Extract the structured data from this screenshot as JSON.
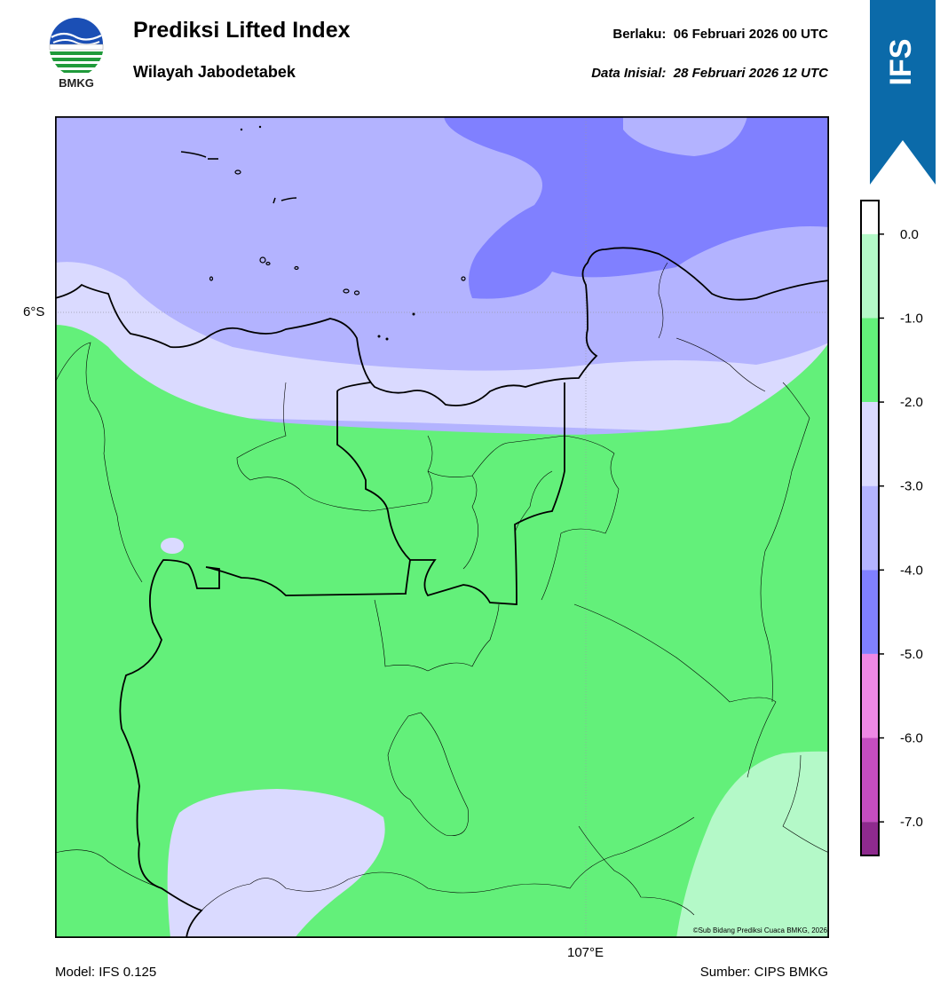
{
  "header": {
    "title": "Prediksi Lifted Index",
    "region": "Wilayah Jabodetabek",
    "valid_prefix": "Berlaku:",
    "valid_time": "06 Februari 2026 00 UTC",
    "init_prefix": "Data Inisial:",
    "init_time": "28 Februari 2026 12 UTC"
  },
  "logo": {
    "name": "bmkg-logo",
    "text": "BMKG"
  },
  "ribbon": {
    "text": "IFS",
    "color": "#0b6aa9"
  },
  "map": {
    "lat_label": "6°S",
    "lon_label": "107°E",
    "credit": "©Sub Bidang Prediksi Cuaca BMKG, 2026"
  },
  "colorbar": {
    "levels": [
      {
        "label": "0.0",
        "value": 0.0
      },
      {
        "label": "-1.0",
        "value": -1.0
      },
      {
        "label": "-2.0",
        "value": -2.0
      },
      {
        "label": "-3.0",
        "value": -3.0
      },
      {
        "label": "-4.0",
        "value": -4.0
      },
      {
        "label": "-5.0",
        "value": -5.0
      },
      {
        "label": "-6.0",
        "value": -6.0
      },
      {
        "label": "-7.0",
        "value": -7.0
      }
    ],
    "bins": [
      {
        "from": 0.0,
        "to": 0.4,
        "color": "#ffffff"
      },
      {
        "from": -1.0,
        "to": 0.0,
        "color": "#b4f9c8"
      },
      {
        "from": -2.0,
        "to": -1.0,
        "color": "#63f07a"
      },
      {
        "from": -3.0,
        "to": -2.0,
        "color": "#dadaff"
      },
      {
        "from": -4.0,
        "to": -3.0,
        "color": "#b3b3ff"
      },
      {
        "from": -5.0,
        "to": -4.0,
        "color": "#8080ff"
      },
      {
        "from": -6.0,
        "to": -5.0,
        "color": "#ee88e4"
      },
      {
        "from": -7.0,
        "to": -6.0,
        "color": "#c44dc0"
      },
      {
        "from": -7.4,
        "to": -7.0,
        "color": "#8e2a8e"
      }
    ]
  },
  "footer": {
    "model": "Model: IFS 0.125",
    "source": "Sumber: CIPS BMKG"
  }
}
